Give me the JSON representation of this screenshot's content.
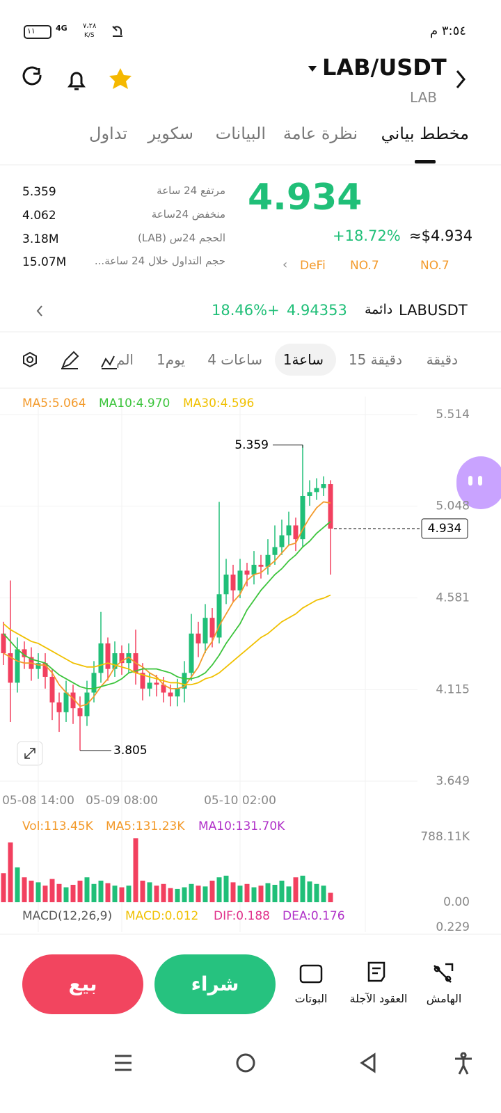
{
  "status_bar": {
    "time": "٣:٥٤ م",
    "speed": "٧،٢٨",
    "speed_unit": "K/S",
    "network": "4G",
    "battery": "١١"
  },
  "header": {
    "pair": "LAB/USDT",
    "base": "LAB"
  },
  "tabs": [
    "مخطط بياني",
    "نظرة عامة",
    "البيانات",
    "سكوير",
    "تداول"
  ],
  "ticker": {
    "price": "4.934",
    "change": "+18.72%",
    "fiat": "≈$4.934",
    "tags": [
      "NO.7",
      "NO.7",
      "DeFi"
    ],
    "stats": [
      {
        "label": "مرتفع 24 ساعة",
        "value": "5.359"
      },
      {
        "label": "منخفض 24ساعة",
        "value": "4.062"
      },
      {
        "label": "الحجم 24س (LAB)",
        "value": "3.18M"
      },
      {
        "label": "حجم التداول خلال 24 ساعة...",
        "value": "15.07M"
      }
    ]
  },
  "perpetual": {
    "symbol": "LABUSDT",
    "kind": "دائمة",
    "price": "4.94353",
    "change": "18.46%+"
  },
  "intervals": [
    "دقيقة",
    "15 دقيقة",
    "1ساعة",
    "4 ساعات",
    "1يوم",
    "الم"
  ],
  "chart_data": {
    "type": "candlestick",
    "categories": [
      null,
      null,
      null,
      null,
      null,
      "05-08 14:00",
      null,
      null,
      null,
      null,
      null,
      null,
      null,
      null,
      null,
      null,
      null,
      "05-09 08:00",
      null,
      null,
      null,
      null,
      null,
      null,
      null,
      null,
      null,
      null,
      null,
      null,
      null,
      null,
      null,
      null,
      "05-10 02:00",
      null,
      null,
      null,
      null,
      null,
      null,
      null,
      null,
      null,
      null,
      null,
      null,
      null
    ],
    "open": [
      4.4,
      4.3,
      4.15,
      4.32,
      4.28,
      4.22,
      4.25,
      4.18,
      4.05,
      4.0,
      4.1,
      4.02,
      3.98,
      4.1,
      4.2,
      4.35,
      4.22,
      4.3,
      4.25,
      4.3,
      4.2,
      4.12,
      4.15,
      4.14,
      4.1,
      4.08,
      4.12,
      4.2,
      4.4,
      4.35,
      4.48,
      4.38,
      4.6,
      4.7,
      4.62,
      4.72,
      4.7,
      4.75,
      4.74,
      4.8,
      4.84,
      4.9,
      4.95,
      4.88,
      5.1,
      5.12,
      5.14,
      5.16
    ],
    "high": [
      4.46,
      4.67,
      4.38,
      4.36,
      4.33,
      4.3,
      4.3,
      4.22,
      4.1,
      4.16,
      4.14,
      4.08,
      4.16,
      4.26,
      4.51,
      4.38,
      4.36,
      4.34,
      4.35,
      4.42,
      4.25,
      4.2,
      4.19,
      4.18,
      4.14,
      4.17,
      4.26,
      4.5,
      4.46,
      4.55,
      4.53,
      5.07,
      4.78,
      4.75,
      4.78,
      4.76,
      4.82,
      4.8,
      4.88,
      4.95,
      4.98,
      5.02,
      4.99,
      5.359,
      5.18,
      5.19,
      5.2,
      5.18
    ],
    "low": [
      4.24,
      3.95,
      4.1,
      4.22,
      4.16,
      4.17,
      4.12,
      3.96,
      3.9,
      3.95,
      3.94,
      3.805,
      3.93,
      4.05,
      4.15,
      4.16,
      4.18,
      4.19,
      4.2,
      4.14,
      4.06,
      4.08,
      4.08,
      4.05,
      4.03,
      4.03,
      4.05,
      4.16,
      4.28,
      4.3,
      4.33,
      4.35,
      4.55,
      4.56,
      4.58,
      4.64,
      4.65,
      4.68,
      4.7,
      4.75,
      4.8,
      4.85,
      4.82,
      4.84,
      5.05,
      5.08,
      5.1,
      4.7
    ],
    "close": [
      4.3,
      4.15,
      4.32,
      4.28,
      4.22,
      4.25,
      4.18,
      4.05,
      4.0,
      4.1,
      4.02,
      3.98,
      4.1,
      4.2,
      4.35,
      4.22,
      4.3,
      4.25,
      4.3,
      4.2,
      4.12,
      4.15,
      4.14,
      4.1,
      4.08,
      4.12,
      4.2,
      4.4,
      4.35,
      4.48,
      4.38,
      4.6,
      4.7,
      4.62,
      4.72,
      4.7,
      4.75,
      4.74,
      4.8,
      4.84,
      4.9,
      4.95,
      4.88,
      5.1,
      5.12,
      5.14,
      5.16,
      4.934
    ],
    "up_color": "#20bf78",
    "down_color": "#f2405f",
    "ylim": [
      3.649,
      5.514
    ],
    "yticks": [
      5.514,
      5.048,
      4.581,
      4.115,
      3.649
    ],
    "series": [
      {
        "name": "MA5:5.064",
        "color": "#f39a2b",
        "values": [
          4.3,
          4.28,
          4.26,
          4.25,
          4.25,
          4.24,
          4.24,
          4.2,
          4.14,
          4.1,
          4.07,
          4.03,
          4.04,
          4.08,
          4.13,
          4.17,
          4.23,
          4.26,
          4.28,
          4.25,
          4.23,
          4.2,
          4.18,
          4.14,
          4.12,
          4.12,
          4.13,
          4.18,
          4.23,
          4.31,
          4.36,
          4.44,
          4.5,
          4.56,
          4.6,
          4.67,
          4.7,
          4.71,
          4.74,
          4.77,
          4.81,
          4.85,
          4.86,
          4.93,
          4.99,
          5.04,
          5.07,
          5.064
        ]
      },
      {
        "name": "MA10:4.970",
        "color": "#3cc43c",
        "values": [
          4.4,
          4.36,
          4.32,
          4.29,
          4.27,
          4.26,
          4.25,
          4.22,
          4.19,
          4.17,
          4.15,
          4.13,
          4.12,
          4.12,
          4.13,
          4.14,
          4.15,
          4.17,
          4.2,
          4.21,
          4.22,
          4.22,
          4.22,
          4.21,
          4.2,
          4.18,
          4.17,
          4.17,
          4.18,
          4.2,
          4.24,
          4.29,
          4.35,
          4.4,
          4.45,
          4.52,
          4.57,
          4.62,
          4.66,
          4.7,
          4.73,
          4.77,
          4.8,
          4.84,
          4.87,
          4.91,
          4.94,
          4.97
        ]
      },
      {
        "name": "MA30:4.596",
        "color": "#f0c000",
        "values": [
          4.45,
          4.42,
          4.4,
          4.38,
          4.36,
          4.35,
          4.33,
          4.31,
          4.29,
          4.27,
          4.25,
          4.24,
          4.23,
          4.23,
          4.24,
          4.25,
          4.24,
          4.23,
          4.22,
          4.2,
          4.19,
          4.18,
          4.17,
          4.16,
          4.15,
          4.15,
          4.14,
          4.14,
          4.15,
          4.17,
          4.18,
          4.2,
          4.23,
          4.26,
          4.29,
          4.32,
          4.35,
          4.38,
          4.4,
          4.43,
          4.46,
          4.48,
          4.5,
          4.53,
          4.55,
          4.57,
          4.58,
          4.596
        ]
      }
    ],
    "volume": {
      "legend": [
        "Vol:113.45K",
        "MA5:131.23K",
        "MA10:131.70K"
      ],
      "legend_colors": [
        "#f39a2b",
        "#f39a2b",
        "#b030c8"
      ],
      "ylim": [
        0,
        788110
      ],
      "yticks": [
        {
          "value": 788110,
          "label": "788.11K"
        },
        {
          "value": 0,
          "label": "0.00"
        }
      ],
      "values": [
        350000,
        720000,
        420000,
        300000,
        260000,
        240000,
        200000,
        280000,
        220000,
        180000,
        210000,
        260000,
        300000,
        220000,
        260000,
        230000,
        200000,
        180000,
        200000,
        770000,
        260000,
        240000,
        200000,
        220000,
        170000,
        160000,
        180000,
        220000,
        200000,
        190000,
        260000,
        300000,
        320000,
        240000,
        200000,
        220000,
        180000,
        200000,
        230000,
        210000,
        260000,
        190000,
        300000,
        320000,
        250000,
        220000,
        200000,
        113450
      ]
    },
    "macd": {
      "legend": [
        "MACD(12,26,9)",
        "MACD:0.012",
        "DIF:0.188",
        "DEA:0.176"
      ],
      "legend_colors": [
        "#555555",
        "#f0c000",
        "#e0308a",
        "#b030c8"
      ],
      "yticks": [
        0.229
      ]
    }
  },
  "actions": {
    "tools": [
      "الهامش",
      "العقود الآجلة",
      "البوتات"
    ],
    "buy": "شراء",
    "sell": "بيع"
  }
}
